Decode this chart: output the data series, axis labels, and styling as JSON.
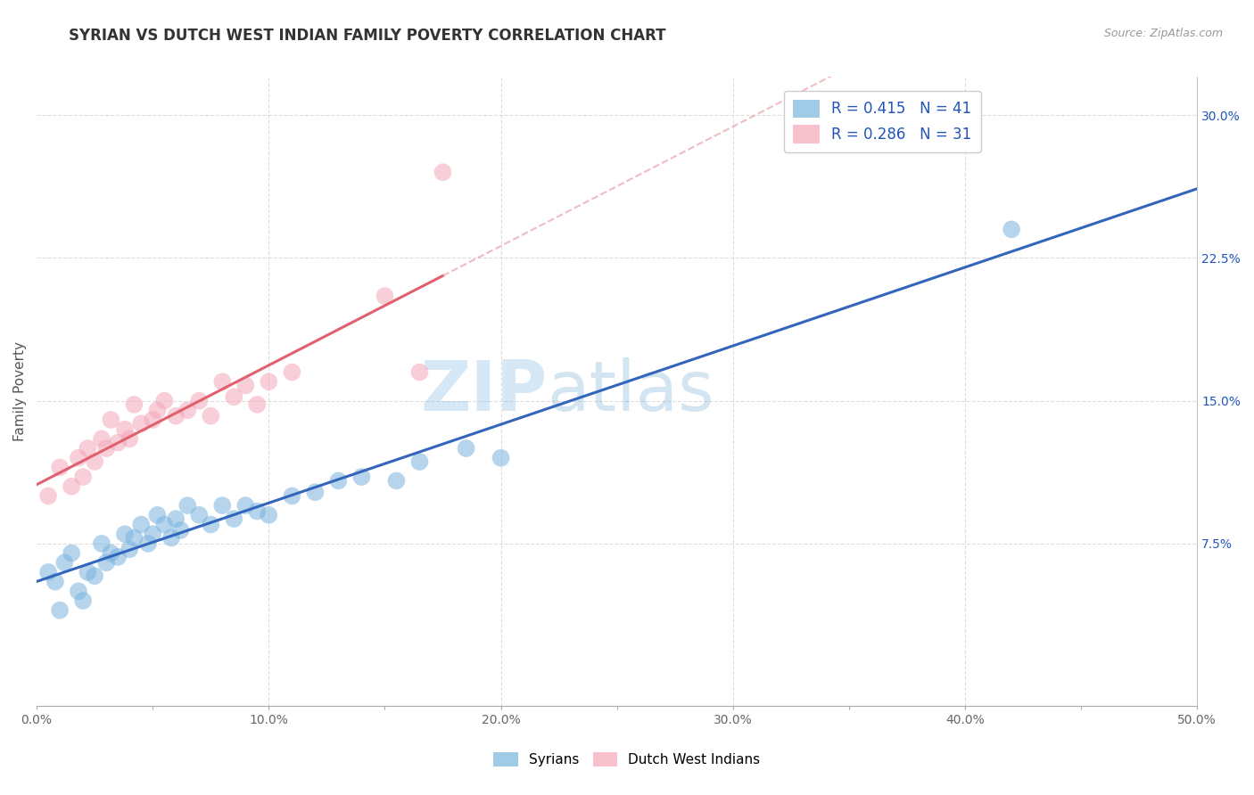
{
  "title": "SYRIAN VS DUTCH WEST INDIAN FAMILY POVERTY CORRELATION CHART",
  "source": "Source: ZipAtlas.com",
  "ylabel": "Family Poverty",
  "xlim": [
    0.0,
    0.5
  ],
  "ylim": [
    -0.01,
    0.32
  ],
  "xticks": [
    0.0,
    0.05,
    0.1,
    0.15,
    0.2,
    0.25,
    0.3,
    0.35,
    0.4,
    0.45,
    0.5
  ],
  "xticklabels": [
    "0.0%",
    "",
    "10.0%",
    "",
    "20.0%",
    "",
    "30.0%",
    "",
    "40.0%",
    "",
    "50.0%"
  ],
  "yticks_left": [],
  "yticks_right": [
    0.075,
    0.15,
    0.225,
    0.3
  ],
  "yticklabels_right": [
    "7.5%",
    "15.0%",
    "22.5%",
    "30.0%"
  ],
  "syrian_color": "#7ab4de",
  "dwi_color": "#f4a8b8",
  "syrian_R": 0.415,
  "syrian_N": 41,
  "dwi_R": 0.286,
  "dwi_N": 31,
  "legend_text_color": "#2255bb",
  "watermark_color": "#b8d4ee",
  "background_color": "#ffffff",
  "grid_color": "#dddddd",
  "syrian_line_color": "#3366bb",
  "dwi_line_color": "#e06070",
  "dwi_dash_color": "#e8a0a8",
  "syrian_x": [
    0.005,
    0.008,
    0.01,
    0.012,
    0.015,
    0.018,
    0.02,
    0.022,
    0.025,
    0.028,
    0.03,
    0.032,
    0.035,
    0.038,
    0.04,
    0.042,
    0.045,
    0.048,
    0.05,
    0.052,
    0.055,
    0.058,
    0.06,
    0.062,
    0.065,
    0.07,
    0.075,
    0.08,
    0.085,
    0.09,
    0.095,
    0.1,
    0.11,
    0.12,
    0.13,
    0.14,
    0.155,
    0.165,
    0.185,
    0.2,
    0.42
  ],
  "syrian_y": [
    0.06,
    0.055,
    0.04,
    0.065,
    0.07,
    0.05,
    0.045,
    0.06,
    0.058,
    0.075,
    0.065,
    0.07,
    0.068,
    0.08,
    0.072,
    0.078,
    0.085,
    0.075,
    0.08,
    0.09,
    0.085,
    0.078,
    0.088,
    0.082,
    0.095,
    0.09,
    0.085,
    0.095,
    0.088,
    0.095,
    0.092,
    0.09,
    0.1,
    0.102,
    0.108,
    0.11,
    0.108,
    0.118,
    0.125,
    0.12,
    0.24
  ],
  "dwi_x": [
    0.005,
    0.01,
    0.015,
    0.018,
    0.02,
    0.022,
    0.025,
    0.028,
    0.03,
    0.032,
    0.035,
    0.038,
    0.04,
    0.042,
    0.045,
    0.05,
    0.052,
    0.055,
    0.06,
    0.065,
    0.07,
    0.075,
    0.08,
    0.085,
    0.09,
    0.095,
    0.1,
    0.11,
    0.15,
    0.165,
    0.175
  ],
  "dwi_y": [
    0.1,
    0.115,
    0.105,
    0.12,
    0.11,
    0.125,
    0.118,
    0.13,
    0.125,
    0.14,
    0.128,
    0.135,
    0.13,
    0.148,
    0.138,
    0.14,
    0.145,
    0.15,
    0.142,
    0.145,
    0.15,
    0.142,
    0.16,
    0.152,
    0.158,
    0.148,
    0.16,
    0.165,
    0.205,
    0.165,
    0.27
  ],
  "title_fontsize": 12,
  "axis_label_fontsize": 11,
  "tick_fontsize": 10,
  "legend_fontsize": 12
}
